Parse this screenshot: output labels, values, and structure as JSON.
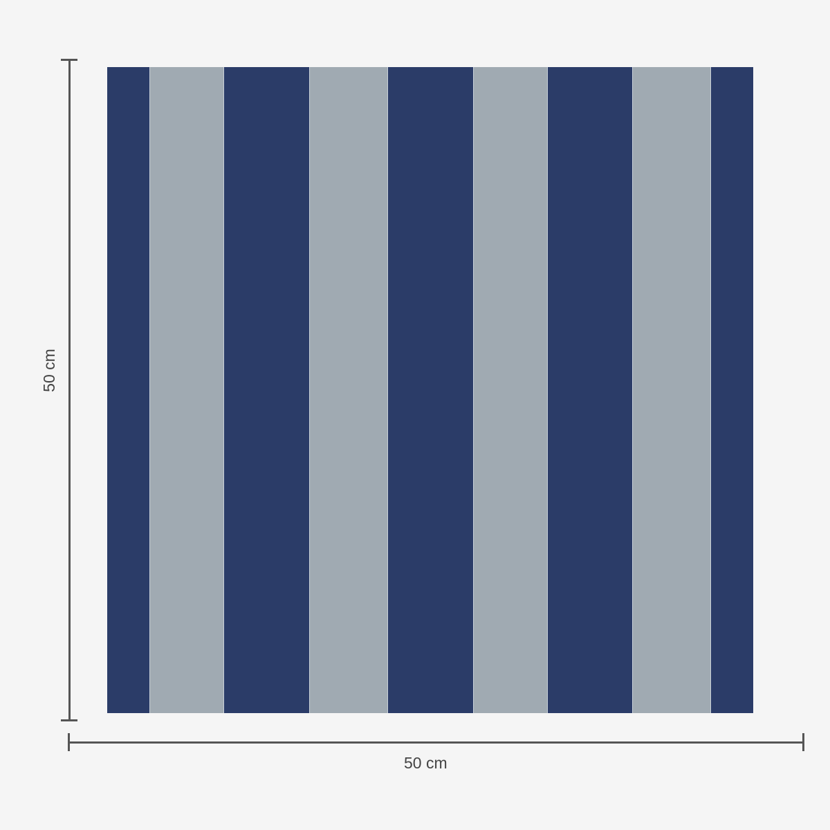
{
  "dimensions": {
    "height_label": "50 cm",
    "width_label": "50 cm"
  },
  "colors": {
    "background": "#f5f5f5",
    "navy": "#2b3c68",
    "gray": "#a0aab2",
    "dimension_line": "#555555"
  },
  "pattern": {
    "type": "vertical stripes",
    "stripes": [
      "navy",
      "gray",
      "navy",
      "gray",
      "navy",
      "gray",
      "navy",
      "gray",
      "navy"
    ]
  }
}
